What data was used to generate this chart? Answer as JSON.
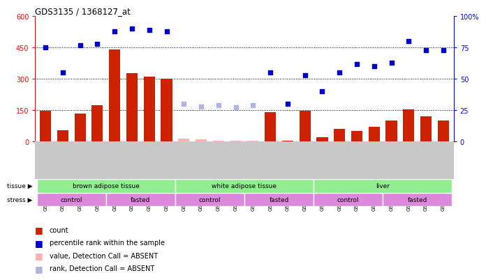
{
  "title": "GDS3135 / 1368127_at",
  "samples": [
    "GSM184414",
    "GSM184415",
    "GSM184416",
    "GSM184417",
    "GSM184418",
    "GSM184419",
    "GSM184420",
    "GSM184421",
    "GSM184422",
    "GSM184423",
    "GSM184424",
    "GSM184425",
    "GSM184426",
    "GSM184427",
    "GSM184428",
    "GSM184429",
    "GSM184430",
    "GSM184431",
    "GSM184432",
    "GSM184433",
    "GSM184434",
    "GSM184435",
    "GSM184436",
    "GSM184437"
  ],
  "count_values": [
    148,
    55,
    135,
    175,
    440,
    328,
    310,
    300,
    15,
    10,
    5,
    5,
    5,
    140,
    5,
    148,
    20,
    60,
    50,
    70,
    100,
    155,
    120,
    100
  ],
  "count_absent": [
    false,
    false,
    false,
    false,
    false,
    false,
    false,
    false,
    true,
    true,
    true,
    true,
    true,
    false,
    false,
    false,
    false,
    false,
    false,
    false,
    false,
    false,
    false,
    false
  ],
  "rank_values": [
    75,
    55,
    77,
    78,
    88,
    90,
    89,
    88,
    30,
    28,
    29,
    27,
    29,
    55,
    30,
    53,
    40,
    55,
    62,
    60,
    63,
    80,
    73,
    73
  ],
  "rank_absent": [
    false,
    false,
    false,
    false,
    false,
    false,
    false,
    false,
    true,
    true,
    true,
    true,
    true,
    false,
    false,
    false,
    false,
    false,
    false,
    false,
    false,
    false,
    false,
    false
  ],
  "tissue_groups": [
    {
      "label": "brown adipose tissue",
      "start": 0,
      "end": 7
    },
    {
      "label": "white adipose tissue",
      "start": 8,
      "end": 15
    },
    {
      "label": "liver",
      "start": 16,
      "end": 23
    }
  ],
  "stress_groups": [
    {
      "label": "control",
      "start": 0,
      "end": 3
    },
    {
      "label": "fasted",
      "start": 4,
      "end": 7
    },
    {
      "label": "control",
      "start": 8,
      "end": 11
    },
    {
      "label": "fasted",
      "start": 12,
      "end": 15
    },
    {
      "label": "control",
      "start": 16,
      "end": 19
    },
    {
      "label": "fasted",
      "start": 20,
      "end": 23
    }
  ],
  "ylim_left": [
    0,
    600
  ],
  "ylim_right": [
    0,
    100
  ],
  "yticks_left": [
    0,
    150,
    300,
    450,
    600
  ],
  "yticks_right": [
    0,
    25,
    50,
    75,
    100
  ],
  "bar_color": "#cc2200",
  "bar_absent_color": "#ffb0b0",
  "dot_color": "#0000cc",
  "dot_absent_color": "#b0b4e0",
  "tissue_color": "#90ee90",
  "stress_color": "#dd88dd",
  "xtick_bg": "#c8c8c8",
  "legend_items": [
    {
      "color": "#cc2200",
      "label": "count"
    },
    {
      "color": "#0000cc",
      "label": "percentile rank within the sample"
    },
    {
      "color": "#ffb0b0",
      "label": "value, Detection Call = ABSENT"
    },
    {
      "color": "#b0b4e0",
      "label": "rank, Detection Call = ABSENT"
    }
  ]
}
